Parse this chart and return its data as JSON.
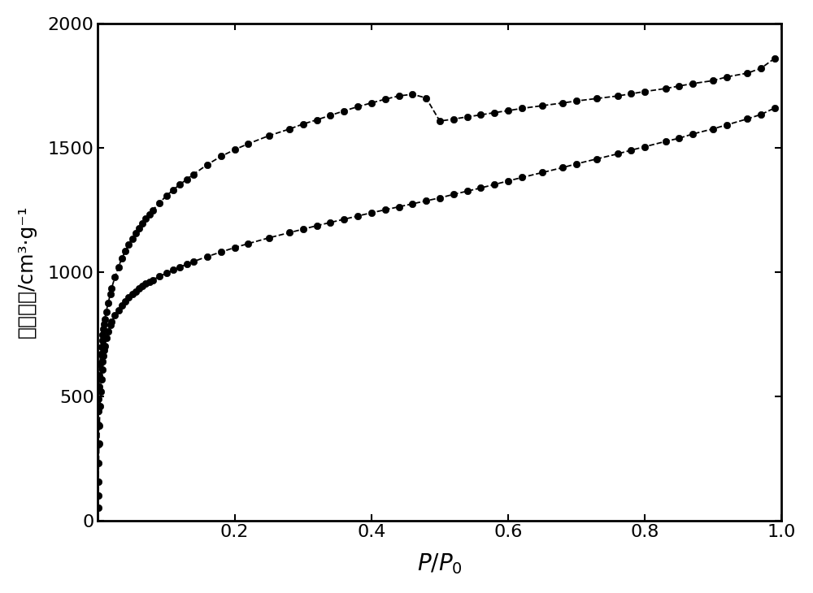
{
  "title": "",
  "xlabel_italic": "$P/P_0$",
  "ylabel": "吸附孔容/cm³·g⁻¹",
  "xlim": [
    0,
    1.0
  ],
  "ylim": [
    0,
    2000
  ],
  "yticks": [
    0,
    500,
    1000,
    1500,
    2000
  ],
  "xticks": [
    0.2,
    0.4,
    0.6,
    0.8,
    1.0
  ],
  "background_color": "#ffffff",
  "line_color": "#000000",
  "marker_color": "#000000",
  "adsorption_x": [
    0.0002,
    0.0004,
    0.0006,
    0.001,
    0.0015,
    0.002,
    0.003,
    0.004,
    0.005,
    0.006,
    0.007,
    0.008,
    0.009,
    0.01,
    0.012,
    0.015,
    0.018,
    0.02,
    0.025,
    0.03,
    0.035,
    0.04,
    0.045,
    0.05,
    0.055,
    0.06,
    0.065,
    0.07,
    0.075,
    0.08,
    0.09,
    0.1,
    0.11,
    0.12,
    0.13,
    0.14,
    0.16,
    0.18,
    0.2,
    0.22,
    0.25,
    0.28,
    0.3,
    0.32,
    0.34,
    0.36,
    0.38,
    0.4,
    0.42,
    0.44,
    0.46,
    0.48,
    0.5,
    0.52,
    0.54,
    0.56,
    0.58,
    0.6,
    0.62,
    0.65,
    0.68,
    0.7,
    0.73,
    0.76,
    0.78,
    0.8,
    0.83,
    0.85,
    0.87,
    0.9,
    0.92,
    0.95,
    0.97,
    0.99
  ],
  "adsorption_y": [
    50,
    100,
    155,
    230,
    310,
    380,
    460,
    520,
    568,
    607,
    638,
    663,
    685,
    703,
    733,
    762,
    786,
    800,
    825,
    847,
    866,
    882,
    897,
    910,
    922,
    933,
    943,
    952,
    960,
    968,
    982,
    995,
    1008,
    1020,
    1031,
    1042,
    1062,
    1080,
    1098,
    1114,
    1137,
    1158,
    1172,
    1186,
    1199,
    1212,
    1225,
    1238,
    1250,
    1262,
    1274,
    1286,
    1298,
    1312,
    1325,
    1338,
    1352,
    1366,
    1380,
    1400,
    1420,
    1435,
    1455,
    1475,
    1490,
    1504,
    1525,
    1538,
    1555,
    1576,
    1592,
    1616,
    1634,
    1660
  ],
  "desorption_x": [
    0.99,
    0.97,
    0.95,
    0.92,
    0.9,
    0.87,
    0.85,
    0.83,
    0.8,
    0.78,
    0.76,
    0.73,
    0.7,
    0.68,
    0.65,
    0.62,
    0.6,
    0.58,
    0.56,
    0.54,
    0.52,
    0.5,
    0.48,
    0.46,
    0.44,
    0.42,
    0.4,
    0.38,
    0.36,
    0.34,
    0.32,
    0.3,
    0.28,
    0.25,
    0.22,
    0.2,
    0.18,
    0.16,
    0.14,
    0.13,
    0.12,
    0.11,
    0.1,
    0.09,
    0.08,
    0.075,
    0.07,
    0.065,
    0.06,
    0.055,
    0.05,
    0.045,
    0.04,
    0.035,
    0.03,
    0.025,
    0.02,
    0.018,
    0.015,
    0.012,
    0.01,
    0.009,
    0.008,
    0.007,
    0.006,
    0.005,
    0.004,
    0.003,
    0.002,
    0.0015,
    0.001,
    0.0006,
    0.0004,
    0.0002
  ],
  "desorption_y": [
    1860,
    1820,
    1800,
    1785,
    1770,
    1758,
    1748,
    1738,
    1726,
    1717,
    1708,
    1698,
    1688,
    1680,
    1669,
    1658,
    1649,
    1641,
    1632,
    1624,
    1615,
    1607,
    1700,
    1715,
    1708,
    1695,
    1680,
    1665,
    1648,
    1630,
    1612,
    1595,
    1575,
    1548,
    1516,
    1492,
    1465,
    1432,
    1393,
    1373,
    1352,
    1330,
    1306,
    1278,
    1248,
    1231,
    1214,
    1195,
    1176,
    1156,
    1134,
    1110,
    1084,
    1055,
    1020,
    980,
    935,
    910,
    875,
    840,
    810,
    790,
    770,
    748,
    725,
    698,
    668,
    630,
    585,
    538,
    490,
    440,
    385,
    305
  ],
  "figsize": [
    10.0,
    7.3
  ],
  "dpi": 100
}
